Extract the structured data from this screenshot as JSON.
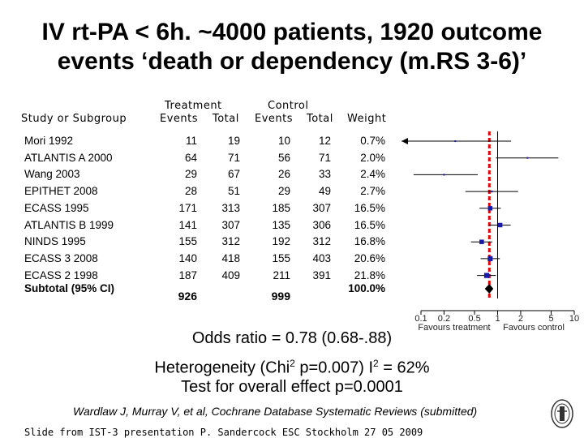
{
  "title": {
    "line1": "IV rt-PA < 6h. ~4000 patients, 1920 outcome",
    "line2": "events ‘death or dependency (m.RS 3-6)’"
  },
  "headers": {
    "study": "Study or Subgroup",
    "treatment": "Treatment",
    "control": "Control",
    "events": "Events",
    "total": "Total",
    "weight": "Weight"
  },
  "chart_data": {
    "type": "forest",
    "x_scale": "log",
    "x_ticks": [
      "0.1",
      "0.2",
      "0.5",
      "1",
      "2",
      "5",
      "10"
    ],
    "x_tick_values": [
      0.1,
      0.2,
      0.5,
      1,
      2,
      5,
      10
    ],
    "xlim": [
      0.1,
      10
    ],
    "reference_line": 1,
    "pooled_line": 0.78,
    "favours_left": "Favours treatment",
    "favours_right": "Favours control",
    "studies": [
      {
        "name": "Mori 1992",
        "t_events": "11",
        "t_total": "19",
        "c_events": "10",
        "c_total": "12",
        "weight": "0.7%",
        "or": 0.28,
        "ci": [
          0.05,
          1.5
        ]
      },
      {
        "name": "ATLANTIS A 2000",
        "t_events": "64",
        "t_total": "71",
        "c_events": "56",
        "c_total": "71",
        "weight": "2.0%",
        "or": 2.45,
        "ci": [
          0.95,
          6.2
        ]
      },
      {
        "name": "Wang 2003",
        "t_events": "29",
        "t_total": "67",
        "c_events": "26",
        "c_total": "33",
        "weight": "2.4%",
        "or": 0.2,
        "ci": [
          0.08,
          0.55
        ]
      },
      {
        "name": "EPITHET 2008",
        "t_events": "28",
        "t_total": "51",
        "c_events": "29",
        "c_total": "49",
        "weight": "2.7%",
        "or": 0.84,
        "ci": [
          0.38,
          1.85
        ]
      },
      {
        "name": "ECASS 1995",
        "t_events": "171",
        "t_total": "313",
        "c_events": "185",
        "c_total": "307",
        "weight": "16.5%",
        "or": 0.8,
        "ci": [
          0.58,
          1.1
        ]
      },
      {
        "name": "ATLANTIS B 1999",
        "t_events": "141",
        "t_total": "307",
        "c_events": "135",
        "c_total": "306",
        "weight": "16.5%",
        "or": 1.08,
        "ci": [
          0.78,
          1.48
        ]
      },
      {
        "name": "NINDS 1995",
        "t_events": "155",
        "t_total": "312",
        "c_events": "192",
        "c_total": "312",
        "weight": "16.8%",
        "or": 0.62,
        "ci": [
          0.45,
          0.85
        ]
      },
      {
        "name": "ECASS 3 2008",
        "t_events": "140",
        "t_total": "418",
        "c_events": "155",
        "c_total": "403",
        "weight": "20.6%",
        "or": 0.8,
        "ci": [
          0.6,
          1.07
        ]
      },
      {
        "name": "ECASS 2 1998",
        "t_events": "187",
        "t_total": "409",
        "c_events": "211",
        "c_total": "391",
        "weight": "21.8%",
        "or": 0.72,
        "ci": [
          0.54,
          0.95
        ]
      }
    ],
    "subtotal": {
      "name": "Subtotal (95% CI)",
      "t_events": "926",
      "c_events": "999",
      "weight": "100.0%",
      "or": 0.78,
      "ci": [
        0.68,
        0.88
      ]
    }
  },
  "stats": {
    "odds_ratio": "Odds ratio = 0.78 (0.68-.88)",
    "het_prefix": "Heterogeneity (Chi",
    "het_sup": "2",
    "het_mid": " p=0.007) I",
    "i2_sup": "2",
    "het_suffix": " = 62%",
    "overall": "Test for overall effect p=0.0001"
  },
  "citation": "Wardlaw J, Murray V, et al, Cochrane Database Systematic Reviews (submitted)",
  "footer": "Slide from IST-3 presentation P. Sandercock ESC Stockholm 27 05 2009",
  "colors": {
    "square": "#1a1aa8",
    "pooled_line": "#e00000",
    "diamond": "#000000"
  }
}
